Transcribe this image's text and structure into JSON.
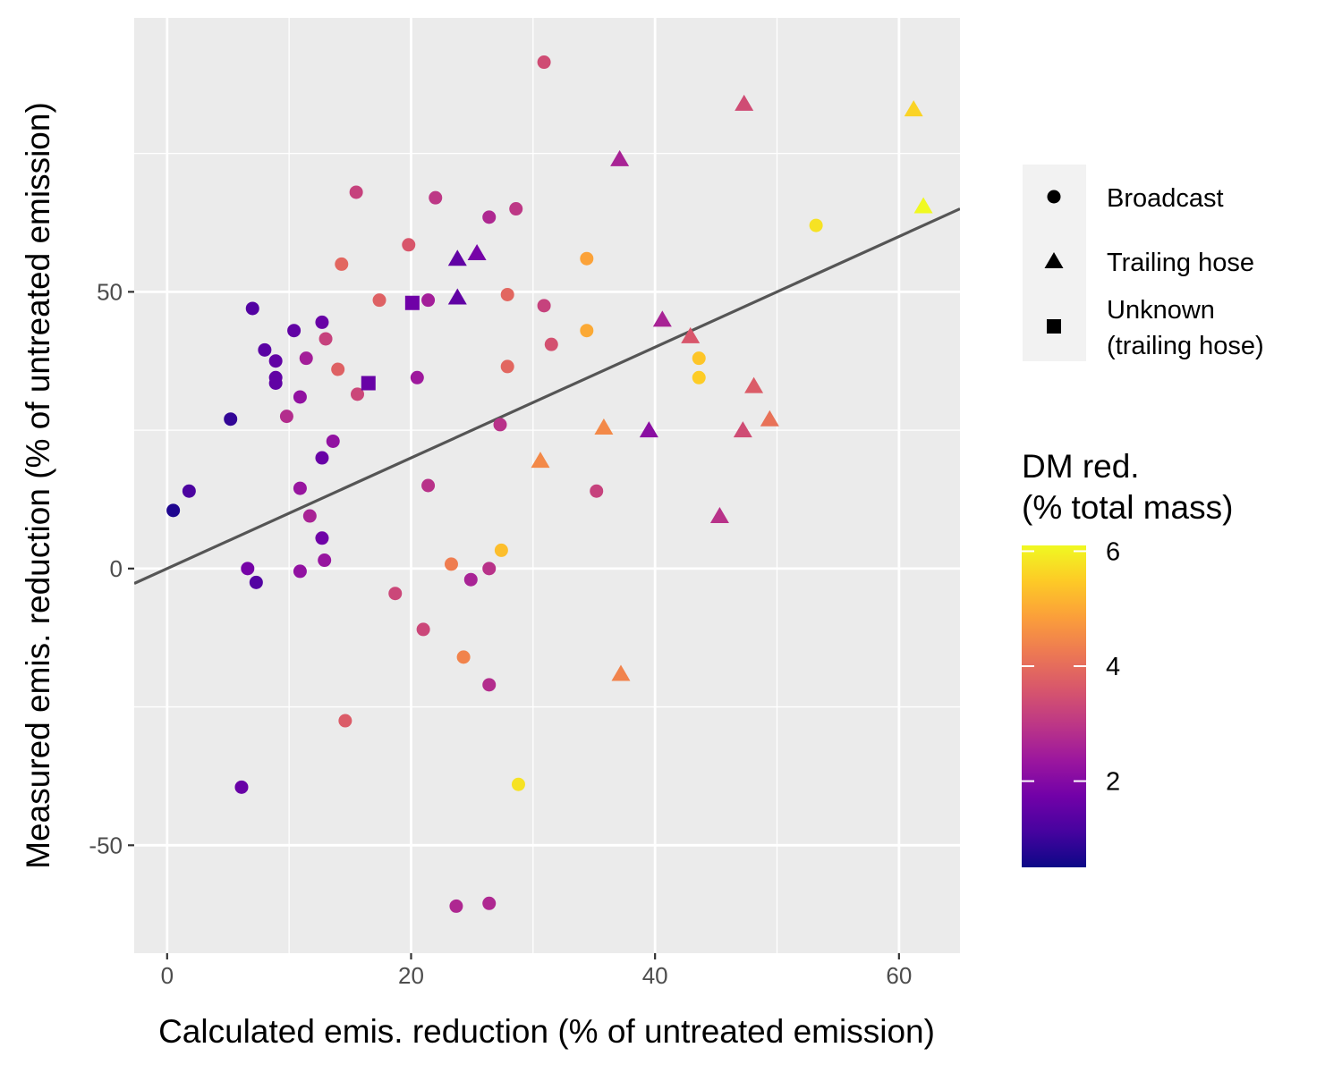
{
  "chart_data": {
    "type": "scatter",
    "title": "",
    "xlabel": "Calculated emis. reduction (% of untreated emission)",
    "ylabel": "Measured emis. reduction (% of untreated emission)",
    "xlim": [
      -2.7,
      65
    ],
    "ylim": [
      -69.5,
      99.5
    ],
    "x_ticks": [
      0,
      20,
      40,
      60
    ],
    "y_ticks": [
      -50,
      0,
      50
    ],
    "x_tick_labels": [
      "0",
      "20",
      "40",
      "60"
    ],
    "y_tick_labels": [
      "-50",
      "0",
      "50"
    ],
    "grid": true,
    "background": "#ebebeb",
    "reference_line": {
      "slope": 1,
      "intercept": 0,
      "color": "#555555"
    },
    "shape_legend": {
      "placement": "right",
      "entries": [
        {
          "key": "circle",
          "label_lines": [
            "Broadcast"
          ]
        },
        {
          "key": "triangle",
          "label_lines": [
            "Trailing hose"
          ]
        },
        {
          "key": "square",
          "label_lines": [
            "Unknown",
            "(trailing hose)"
          ]
        }
      ]
    },
    "color_legend": {
      "title_lines": [
        "DM red.",
        "(% total mass)"
      ],
      "min": 0.5,
      "max": 6.1,
      "ticks": [
        2,
        4,
        6
      ],
      "tick_labels": [
        "2",
        "4",
        "6"
      ],
      "colormap": "plasma",
      "stops": [
        "#0d0887",
        "#46039f",
        "#7201a8",
        "#9c179e",
        "#bd3786",
        "#d8576b",
        "#ed7953",
        "#fb9f3a",
        "#fdca26",
        "#f0f921"
      ]
    },
    "points": [
      {
        "x": 0.5,
        "y": 10.5,
        "shape": "circle",
        "dm": 0.7
      },
      {
        "x": 1.8,
        "y": 14,
        "shape": "circle",
        "dm": 1.2
      },
      {
        "x": 5.2,
        "y": 27,
        "shape": "circle",
        "dm": 0.9
      },
      {
        "x": 6.1,
        "y": -39.5,
        "shape": "circle",
        "dm": 1.6
      },
      {
        "x": 6.6,
        "y": 0,
        "shape": "circle",
        "dm": 1.8
      },
      {
        "x": 7.0,
        "y": 47,
        "shape": "circle",
        "dm": 1.3
      },
      {
        "x": 7.3,
        "y": -2.5,
        "shape": "circle",
        "dm": 1.3
      },
      {
        "x": 8.0,
        "y": 39.5,
        "shape": "circle",
        "dm": 1.4
      },
      {
        "x": 8.9,
        "y": 37.5,
        "shape": "circle",
        "dm": 1.5
      },
      {
        "x": 8.9,
        "y": 34.5,
        "shape": "circle",
        "dm": 1.5
      },
      {
        "x": 8.9,
        "y": 33.5,
        "shape": "circle",
        "dm": 1.5
      },
      {
        "x": 9.8,
        "y": 27.5,
        "shape": "circle",
        "dm": 2.8
      },
      {
        "x": 10.4,
        "y": 43,
        "shape": "circle",
        "dm": 1.5
      },
      {
        "x": 10.9,
        "y": 31,
        "shape": "circle",
        "dm": 2.2
      },
      {
        "x": 10.9,
        "y": 14.5,
        "shape": "circle",
        "dm": 2.3
      },
      {
        "x": 10.9,
        "y": -0.5,
        "shape": "circle",
        "dm": 2.2
      },
      {
        "x": 11.4,
        "y": 38,
        "shape": "circle",
        "dm": 2.5
      },
      {
        "x": 11.7,
        "y": 9.5,
        "shape": "circle",
        "dm": 2.6
      },
      {
        "x": 12.7,
        "y": 20,
        "shape": "circle",
        "dm": 1.6
      },
      {
        "x": 12.7,
        "y": 5.5,
        "shape": "circle",
        "dm": 1.7
      },
      {
        "x": 12.7,
        "y": 44.5,
        "shape": "circle",
        "dm": 1.6
      },
      {
        "x": 12.9,
        "y": 1.5,
        "shape": "circle",
        "dm": 2.3
      },
      {
        "x": 13.0,
        "y": 41.5,
        "shape": "circle",
        "dm": 3.2
      },
      {
        "x": 13.6,
        "y": 23,
        "shape": "circle",
        "dm": 2.2
      },
      {
        "x": 14.0,
        "y": 36,
        "shape": "circle",
        "dm": 3.8
      },
      {
        "x": 14.3,
        "y": 55,
        "shape": "circle",
        "dm": 3.9
      },
      {
        "x": 14.6,
        "y": -27.5,
        "shape": "circle",
        "dm": 3.7
      },
      {
        "x": 15.5,
        "y": 68,
        "shape": "circle",
        "dm": 3.2
      },
      {
        "x": 15.6,
        "y": 31.5,
        "shape": "circle",
        "dm": 3.3
      },
      {
        "x": 17.4,
        "y": 48.5,
        "shape": "circle",
        "dm": 3.8
      },
      {
        "x": 18.7,
        "y": -4.5,
        "shape": "circle",
        "dm": 3.3
      },
      {
        "x": 19.8,
        "y": 58.5,
        "shape": "circle",
        "dm": 3.6
      },
      {
        "x": 20.5,
        "y": 34.5,
        "shape": "circle",
        "dm": 2.4
      },
      {
        "x": 21.0,
        "y": -11,
        "shape": "circle",
        "dm": 3.3
      },
      {
        "x": 21.4,
        "y": 48.5,
        "shape": "circle",
        "dm": 2.5
      },
      {
        "x": 21.4,
        "y": 15,
        "shape": "circle",
        "dm": 2.9
      },
      {
        "x": 22.0,
        "y": 67,
        "shape": "circle",
        "dm": 3.0
      },
      {
        "x": 23.3,
        "y": 0.8,
        "shape": "circle",
        "dm": 4.3
      },
      {
        "x": 23.7,
        "y": -61,
        "shape": "circle",
        "dm": 2.7
      },
      {
        "x": 24.3,
        "y": -16,
        "shape": "circle",
        "dm": 4.4
      },
      {
        "x": 24.9,
        "y": -2,
        "shape": "circle",
        "dm": 2.6
      },
      {
        "x": 26.4,
        "y": -60.5,
        "shape": "circle",
        "dm": 2.7
      },
      {
        "x": 26.4,
        "y": 63.5,
        "shape": "circle",
        "dm": 2.7
      },
      {
        "x": 26.4,
        "y": 0,
        "shape": "circle",
        "dm": 2.9
      },
      {
        "x": 26.4,
        "y": -21,
        "shape": "circle",
        "dm": 2.8
      },
      {
        "x": 27.3,
        "y": 26,
        "shape": "circle",
        "dm": 2.9
      },
      {
        "x": 27.4,
        "y": 3.3,
        "shape": "circle",
        "dm": 5.3
      },
      {
        "x": 27.9,
        "y": 49.5,
        "shape": "circle",
        "dm": 3.9
      },
      {
        "x": 27.9,
        "y": 36.5,
        "shape": "circle",
        "dm": 3.9
      },
      {
        "x": 28.6,
        "y": 65,
        "shape": "circle",
        "dm": 3.0
      },
      {
        "x": 28.8,
        "y": -39,
        "shape": "circle",
        "dm": 5.8
      },
      {
        "x": 30.9,
        "y": 47.5,
        "shape": "circle",
        "dm": 3.2
      },
      {
        "x": 30.9,
        "y": 91.5,
        "shape": "circle",
        "dm": 3.4
      },
      {
        "x": 31.5,
        "y": 40.5,
        "shape": "circle",
        "dm": 3.5
      },
      {
        "x": 34.4,
        "y": 56,
        "shape": "circle",
        "dm": 4.9
      },
      {
        "x": 34.4,
        "y": 43,
        "shape": "circle",
        "dm": 5.0
      },
      {
        "x": 35.2,
        "y": 14,
        "shape": "circle",
        "dm": 3.2
      },
      {
        "x": 43.6,
        "y": 38,
        "shape": "circle",
        "dm": 5.4
      },
      {
        "x": 43.6,
        "y": 34.5,
        "shape": "circle",
        "dm": 5.5
      },
      {
        "x": 53.2,
        "y": 62,
        "shape": "circle",
        "dm": 5.8
      },
      {
        "x": 16.5,
        "y": 33.5,
        "shape": "square",
        "dm": 1.6
      },
      {
        "x": 20.1,
        "y": 48,
        "shape": "square",
        "dm": 1.7
      },
      {
        "x": 23.8,
        "y": 56,
        "shape": "triangle",
        "dm": 1.5
      },
      {
        "x": 23.8,
        "y": 49,
        "shape": "triangle",
        "dm": 1.5
      },
      {
        "x": 25.4,
        "y": 57,
        "shape": "triangle",
        "dm": 1.8
      },
      {
        "x": 30.6,
        "y": 19.5,
        "shape": "triangle",
        "dm": 4.5
      },
      {
        "x": 35.8,
        "y": 25.5,
        "shape": "triangle",
        "dm": 4.5
      },
      {
        "x": 37.1,
        "y": 74,
        "shape": "triangle",
        "dm": 2.6
      },
      {
        "x": 37.2,
        "y": -19,
        "shape": "triangle",
        "dm": 4.4
      },
      {
        "x": 39.5,
        "y": 25,
        "shape": "triangle",
        "dm": 2.1
      },
      {
        "x": 40.6,
        "y": 45,
        "shape": "triangle",
        "dm": 2.6
      },
      {
        "x": 42.9,
        "y": 42,
        "shape": "triangle",
        "dm": 3.6
      },
      {
        "x": 45.3,
        "y": 9.5,
        "shape": "triangle",
        "dm": 2.9
      },
      {
        "x": 47.2,
        "y": 25,
        "shape": "triangle",
        "dm": 3.4
      },
      {
        "x": 47.3,
        "y": 84,
        "shape": "triangle",
        "dm": 3.4
      },
      {
        "x": 48.1,
        "y": 33,
        "shape": "triangle",
        "dm": 3.7
      },
      {
        "x": 49.4,
        "y": 27,
        "shape": "triangle",
        "dm": 4.1
      },
      {
        "x": 61.2,
        "y": 83,
        "shape": "triangle",
        "dm": 5.6
      },
      {
        "x": 62.0,
        "y": 65.5,
        "shape": "triangle",
        "dm": 6.1
      }
    ]
  }
}
